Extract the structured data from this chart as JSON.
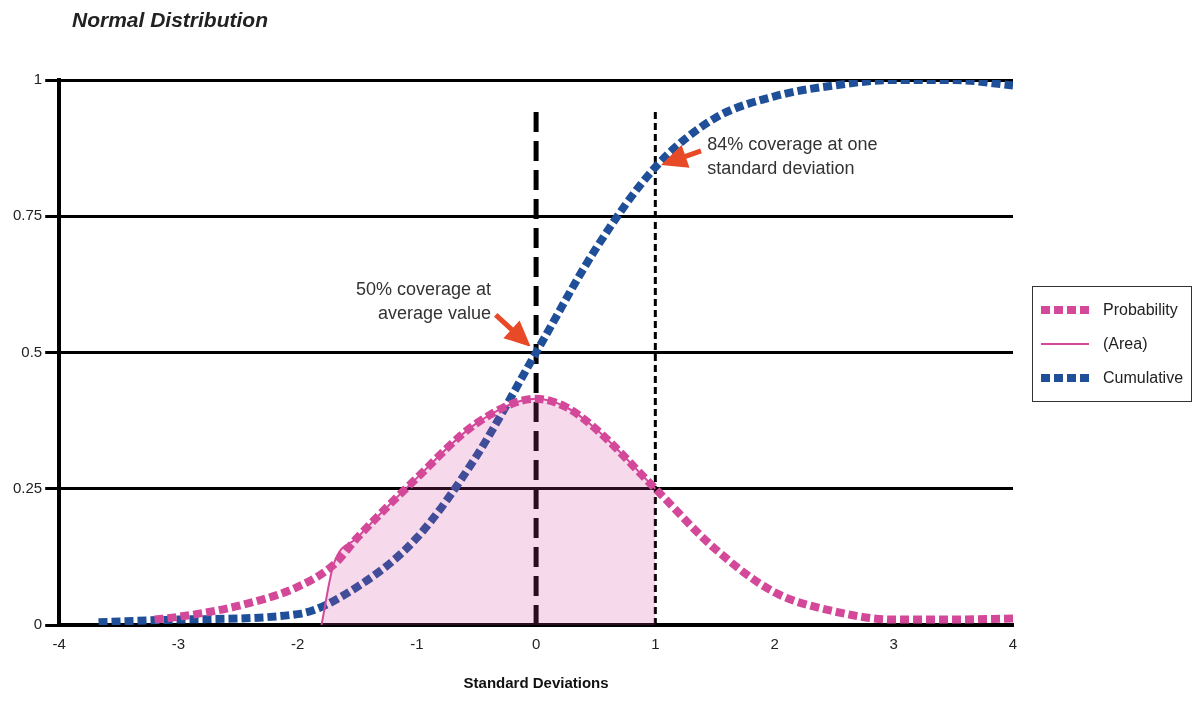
{
  "chart_data": {
    "type": "line",
    "title": "Normal Distribution",
    "xlabel": "Standard Deviations",
    "xlim": [
      -4,
      4
    ],
    "xticks": [
      -4,
      -3,
      -2,
      -1,
      0,
      1,
      2,
      3,
      4
    ],
    "ylim": [
      0,
      1
    ],
    "yticks": [
      0,
      0.25,
      0.5,
      0.75,
      1
    ],
    "grid": "y",
    "legend": "right",
    "marker": "none",
    "series": [
      {
        "name": "Probability",
        "color": "#d4489a",
        "line_style": "dashed",
        "x": [
          -3.2,
          -3,
          -2.5,
          -2,
          -1.7,
          -1.5,
          -1,
          -0.5,
          0,
          0.25,
          0.5,
          1,
          1.5,
          2,
          2.5,
          3,
          3.5,
          4
        ],
        "values": [
          0.01,
          0.015,
          0.035,
          0.07,
          0.11,
          0.16,
          0.27,
          0.37,
          0.415,
          0.4,
          0.36,
          0.25,
          0.14,
          0.06,
          0.025,
          0.01,
          0.01,
          0.012
        ]
      },
      {
        "name": "(Area)",
        "type": "area",
        "color": "#d4489a",
        "line_style": "solid",
        "x": [
          -1.8,
          -1.7,
          -1.5,
          -1,
          -0.5,
          0,
          0.25,
          0.5,
          1
        ],
        "values": [
          0,
          0.11,
          0.16,
          0.27,
          0.37,
          0.415,
          0.4,
          0.36,
          0.25
        ]
      },
      {
        "name": "Cumulative",
        "color": "#1f4f99",
        "line_style": "dashed",
        "x": [
          -3.67,
          -3,
          -2,
          -1.5,
          -1,
          -0.5,
          0,
          0.5,
          1,
          1.5,
          2,
          2.5,
          3,
          3.5,
          4
        ],
        "values": [
          0.005,
          0.01,
          0.02,
          0.07,
          0.16,
          0.31,
          0.5,
          0.69,
          0.84,
          0.93,
          0.97,
          0.99,
          1.0,
          1.0,
          0.99
        ]
      }
    ],
    "ref_lines": [
      {
        "axis": "x",
        "value": 0,
        "line_style": "dashed",
        "color": "#000000"
      },
      {
        "axis": "x",
        "value": 1,
        "line_style": "dotted",
        "color": "#000000"
      }
    ],
    "annotations": [
      {
        "text": "50% coverage at average value",
        "x": 0,
        "y": 0.5
      },
      {
        "text": "84% coverage at one standard deviation",
        "x": 1,
        "y": 0.84
      }
    ]
  }
}
